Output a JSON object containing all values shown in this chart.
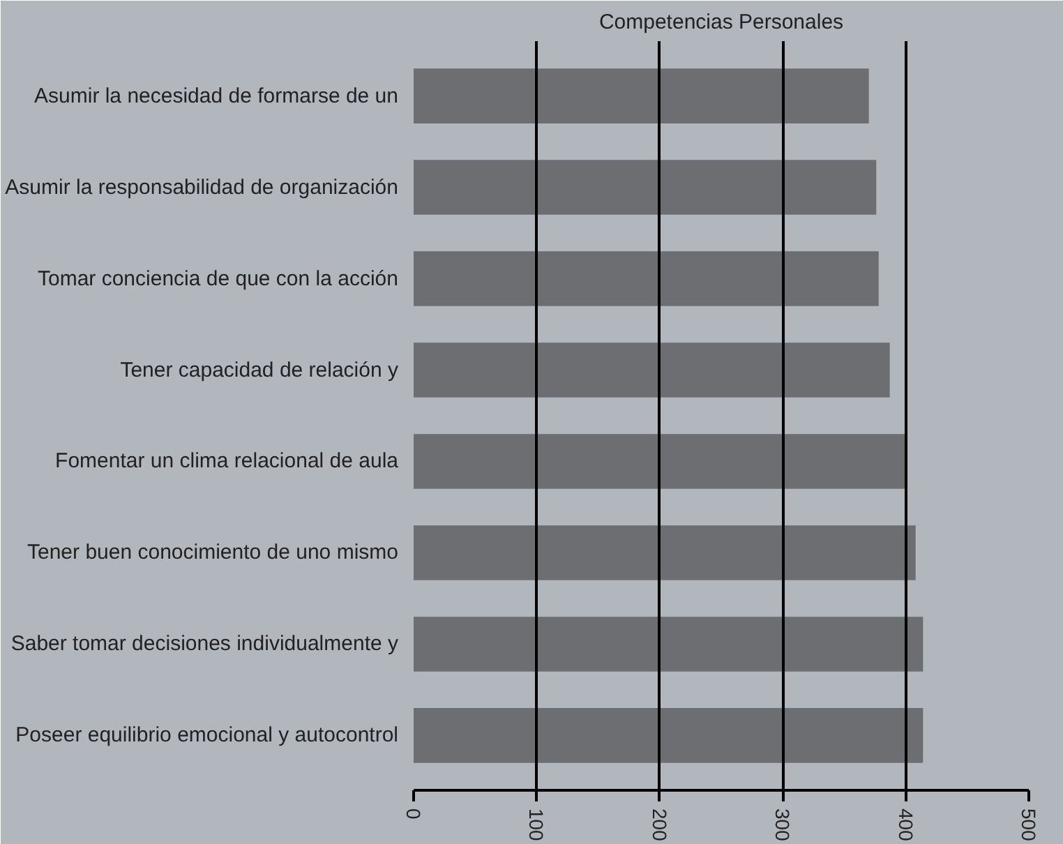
{
  "chart_data": {
    "type": "bar",
    "orientation": "horizontal",
    "title": "Competencias Personales",
    "categories": [
      "Asumir la necesidad de formarse de un",
      "Asumir la responsabilidad de organización",
      "Tomar conciencia de que con la acción",
      "Tener capacidad de relación y",
      "Fomentar un clima relacional de aula",
      "Tener buen conocimiento de uno mismo",
      "Saber tomar decisiones individualmente y",
      "Poseer equilibrio emocional y autocontrol"
    ],
    "values": [
      370,
      376,
      378,
      387,
      400,
      408,
      414,
      414
    ],
    "color": "#6d6e72",
    "xlim": [
      0,
      500
    ],
    "xticks": [
      0,
      100,
      200,
      300,
      400,
      500
    ],
    "grid": "x"
  }
}
